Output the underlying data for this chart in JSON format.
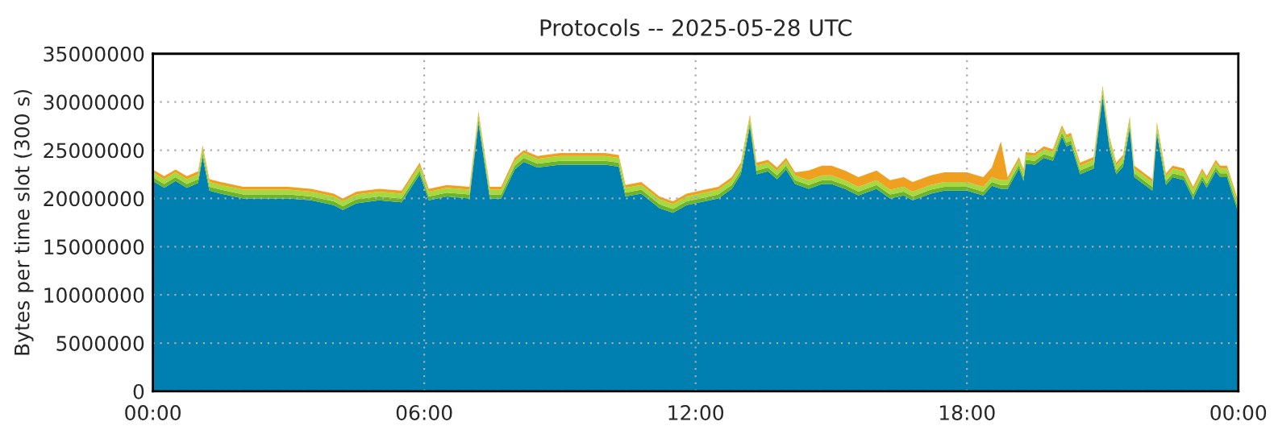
{
  "chart_data": {
    "type": "area",
    "stacked": true,
    "title": "Protocols -- 2025-05-28 UTC",
    "ylabel": "Bytes per time slot (300 s)",
    "x": [
      0,
      0.25,
      0.5,
      0.75,
      1.0,
      1.1,
      1.25,
      1.5,
      2.0,
      2.5,
      3.0,
      3.5,
      4.0,
      4.2,
      4.5,
      5.0,
      5.5,
      5.9,
      6.1,
      6.5,
      7.0,
      7.2,
      7.45,
      7.7,
      8.0,
      8.2,
      8.5,
      9.0,
      9.5,
      10.0,
      10.3,
      10.45,
      10.8,
      11.2,
      11.5,
      11.8,
      12.2,
      12.5,
      12.8,
      13.0,
      13.2,
      13.35,
      13.6,
      13.8,
      14.0,
      14.2,
      14.5,
      14.8,
      15.0,
      15.3,
      15.6,
      16.0,
      16.3,
      16.6,
      16.8,
      17.2,
      17.5,
      18.0,
      18.36,
      18.55,
      18.75,
      18.9,
      19.15,
      19.25,
      19.3,
      19.5,
      19.7,
      19.9,
      20.1,
      20.2,
      20.3,
      20.5,
      20.8,
      21.0,
      21.15,
      21.3,
      21.45,
      21.6,
      21.7,
      22.1,
      22.2,
      22.4,
      22.55,
      22.8,
      23.0,
      23.2,
      23.3,
      23.5,
      23.6,
      23.75,
      23.9,
      24.0
    ],
    "series": [
      {
        "color": "#0080b0",
        "values": [
          21800000,
          21100000,
          21800000,
          21100000,
          21600000,
          24300000,
          20800000,
          20500000,
          20000000,
          20000000,
          20000000,
          19800000,
          19300000,
          18800000,
          19500000,
          19800000,
          19600000,
          22500000,
          19800000,
          20200000,
          20000000,
          27800000,
          20000000,
          20000000,
          23000000,
          23800000,
          23200000,
          23500000,
          23500000,
          23500000,
          23300000,
          20200000,
          20500000,
          19000000,
          18500000,
          19300000,
          19700000,
          20000000,
          21000000,
          22500000,
          27500000,
          22500000,
          22800000,
          22000000,
          23000000,
          21500000,
          21000000,
          21500000,
          21500000,
          21000000,
          20300000,
          21000000,
          20000000,
          20300000,
          19800000,
          20500000,
          20800000,
          20800000,
          20300000,
          21300000,
          21000000,
          21000000,
          23100000,
          21800000,
          23600000,
          23500000,
          24200000,
          23900000,
          26400000,
          25400000,
          25600000,
          22500000,
          23100000,
          30500000,
          25200000,
          22500000,
          23300000,
          27300000,
          22200000,
          20800000,
          26700000,
          21400000,
          22200000,
          21900000,
          20000000,
          21900000,
          21100000,
          22800000,
          22200000,
          22200000,
          20000000,
          18500000
        ]
      },
      {
        "color": "#6cb42c",
        "values": [
          400000,
          400000,
          400000,
          400000,
          400000,
          400000,
          400000,
          400000,
          400000,
          400000,
          400000,
          400000,
          400000,
          400000,
          400000,
          400000,
          400000,
          400000,
          400000,
          400000,
          400000,
          400000,
          400000,
          400000,
          400000,
          400000,
          400000,
          400000,
          400000,
          400000,
          400000,
          400000,
          400000,
          400000,
          400000,
          400000,
          400000,
          400000,
          400000,
          400000,
          400000,
          400000,
          400000,
          400000,
          400000,
          400000,
          400000,
          400000,
          400000,
          400000,
          400000,
          400000,
          400000,
          400000,
          400000,
          400000,
          400000,
          400000,
          400000,
          400000,
          400000,
          400000,
          400000,
          400000,
          400000,
          400000,
          400000,
          400000,
          400000,
          400000,
          400000,
          400000,
          400000,
          400000,
          400000,
          400000,
          400000,
          400000,
          400000,
          400000,
          400000,
          400000,
          400000,
          400000,
          400000,
          400000,
          400000,
          400000,
          400000,
          400000,
          400000,
          400000
        ]
      },
      {
        "color": "#a8d840",
        "values": [
          500000,
          500000,
          500000,
          500000,
          500000,
          500000,
          500000,
          500000,
          500000,
          500000,
          500000,
          500000,
          500000,
          500000,
          500000,
          500000,
          500000,
          500000,
          500000,
          500000,
          500000,
          500000,
          500000,
          500000,
          500000,
          500000,
          500000,
          500000,
          500000,
          500000,
          500000,
          500000,
          500000,
          500000,
          500000,
          500000,
          500000,
          500000,
          500000,
          500000,
          500000,
          500000,
          500000,
          500000,
          500000,
          500000,
          500000,
          500000,
          500000,
          500000,
          500000,
          500000,
          500000,
          500000,
          500000,
          500000,
          500000,
          500000,
          500000,
          500000,
          500000,
          500000,
          500000,
          500000,
          500000,
          500000,
          500000,
          500000,
          500000,
          500000,
          500000,
          500000,
          500000,
          500000,
          500000,
          500000,
          500000,
          500000,
          500000,
          500000,
          500000,
          500000,
          500000,
          500000,
          500000,
          500000,
          500000,
          500000,
          500000,
          500000,
          500000,
          500000
        ]
      },
      {
        "color": "#f0a020",
        "values": [
          300000,
          300000,
          300000,
          300000,
          300000,
          300000,
          300000,
          300000,
          300000,
          300000,
          300000,
          300000,
          300000,
          300000,
          300000,
          300000,
          300000,
          300000,
          300000,
          300000,
          300000,
          300000,
          300000,
          300000,
          300000,
          300000,
          300000,
          300000,
          300000,
          300000,
          300000,
          300000,
          300000,
          300000,
          300000,
          300000,
          300000,
          300000,
          300000,
          300000,
          300000,
          300000,
          300000,
          300000,
          300000,
          300000,
          1000000,
          1000000,
          1000000,
          1000000,
          1000000,
          1000000,
          1000000,
          1000000,
          1000000,
          1000000,
          1000000,
          1000000,
          1000000,
          1000000,
          4000000,
          300000,
          300000,
          300000,
          300000,
          300000,
          300000,
          300000,
          300000,
          300000,
          300000,
          300000,
          300000,
          300000,
          300000,
          300000,
          300000,
          300000,
          300000,
          300000,
          300000,
          300000,
          300000,
          300000,
          300000,
          300000,
          300000,
          300000,
          300000,
          300000,
          300000,
          300000
        ]
      }
    ],
    "xlim": [
      0,
      24
    ],
    "xticks": [
      {
        "value": 0,
        "label": "00:00"
      },
      {
        "value": 6,
        "label": "06:00"
      },
      {
        "value": 12,
        "label": "12:00"
      },
      {
        "value": 18,
        "label": "18:00"
      },
      {
        "value": 24,
        "label": "00:00"
      }
    ],
    "ylim": [
      0,
      35000000
    ],
    "yticks": [
      0,
      5000000,
      10000000,
      15000000,
      20000000,
      25000000,
      30000000,
      35000000
    ],
    "grid": true,
    "legend": false
  }
}
